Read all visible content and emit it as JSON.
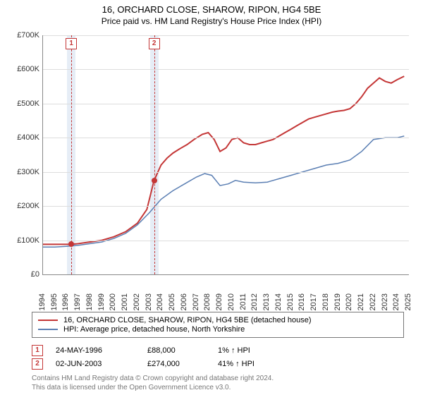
{
  "title": {
    "line1": "16, ORCHARD CLOSE, SHAROW, RIPON, HG4 5BE",
    "line2": "Price paid vs. HM Land Registry's House Price Index (HPI)"
  },
  "chart": {
    "type": "line",
    "background_color": "#ffffff",
    "grid_color": "#dddddd",
    "axis_color": "#888888",
    "x": {
      "min": 1994,
      "max": 2025,
      "tick_step": 1
    },
    "y": {
      "min": 0,
      "max": 700000,
      "tick_step": 100000,
      "prefix": "£",
      "label_fontsize": 11
    },
    "marker_band_color": "#e6edf6",
    "marker_line_color": "#c43636",
    "series": [
      {
        "name": "16, ORCHARD CLOSE, SHAROW, RIPON, HG4 5BE (detached house)",
        "color": "#c43636",
        "line_width": 2,
        "points": [
          [
            1994.0,
            88
          ],
          [
            1995.0,
            88
          ],
          [
            1996.4,
            88
          ],
          [
            1997.0,
            90
          ],
          [
            1998.0,
            95
          ],
          [
            1999.0,
            100
          ],
          [
            2000.0,
            110
          ],
          [
            2001.0,
            125
          ],
          [
            2002.0,
            150
          ],
          [
            2002.8,
            190
          ],
          [
            2003.4,
            274
          ],
          [
            2004.0,
            320
          ],
          [
            2004.5,
            340
          ],
          [
            2005.0,
            355
          ],
          [
            2005.7,
            370
          ],
          [
            2006.2,
            380
          ],
          [
            2006.8,
            395
          ],
          [
            2007.5,
            410
          ],
          [
            2008.0,
            415
          ],
          [
            2008.5,
            395
          ],
          [
            2009.0,
            360
          ],
          [
            2009.5,
            370
          ],
          [
            2010.0,
            395
          ],
          [
            2010.5,
            400
          ],
          [
            2011.0,
            385
          ],
          [
            2011.5,
            380
          ],
          [
            2012.0,
            380
          ],
          [
            2012.5,
            385
          ],
          [
            2013.0,
            390
          ],
          [
            2013.5,
            395
          ],
          [
            2014.0,
            405
          ],
          [
            2014.5,
            415
          ],
          [
            2015.0,
            425
          ],
          [
            2015.5,
            435
          ],
          [
            2016.0,
            445
          ],
          [
            2016.5,
            455
          ],
          [
            2017.0,
            460
          ],
          [
            2017.5,
            465
          ],
          [
            2018.0,
            470
          ],
          [
            2018.5,
            475
          ],
          [
            2019.0,
            478
          ],
          [
            2019.5,
            480
          ],
          [
            2020.0,
            485
          ],
          [
            2020.5,
            500
          ],
          [
            2021.0,
            520
          ],
          [
            2021.5,
            545
          ],
          [
            2022.0,
            560
          ],
          [
            2022.5,
            575
          ],
          [
            2023.0,
            565
          ],
          [
            2023.5,
            560
          ],
          [
            2024.0,
            570
          ],
          [
            2024.6,
            580
          ]
        ]
      },
      {
        "name": "HPI: Average price, detached house, North Yorkshire",
        "color": "#5b7fb3",
        "line_width": 1.5,
        "points": [
          [
            1994.0,
            80
          ],
          [
            1995.0,
            80
          ],
          [
            1996.0,
            82
          ],
          [
            1997.0,
            85
          ],
          [
            1998.0,
            90
          ],
          [
            1999.0,
            95
          ],
          [
            2000.0,
            105
          ],
          [
            2001.0,
            120
          ],
          [
            2002.0,
            145
          ],
          [
            2003.0,
            180
          ],
          [
            2004.0,
            220
          ],
          [
            2005.0,
            245
          ],
          [
            2006.0,
            265
          ],
          [
            2007.0,
            285
          ],
          [
            2007.7,
            295
          ],
          [
            2008.3,
            290
          ],
          [
            2009.0,
            260
          ],
          [
            2009.7,
            265
          ],
          [
            2010.3,
            275
          ],
          [
            2011.0,
            270
          ],
          [
            2012.0,
            268
          ],
          [
            2013.0,
            270
          ],
          [
            2014.0,
            280
          ],
          [
            2015.0,
            290
          ],
          [
            2016.0,
            300
          ],
          [
            2017.0,
            310
          ],
          [
            2018.0,
            320
          ],
          [
            2019.0,
            325
          ],
          [
            2020.0,
            335
          ],
          [
            2021.0,
            360
          ],
          [
            2022.0,
            395
          ],
          [
            2023.0,
            400
          ],
          [
            2024.0,
            400
          ],
          [
            2024.6,
            405
          ]
        ]
      }
    ],
    "sale_markers": [
      {
        "n": "1",
        "x": 1996.4,
        "y": 88
      },
      {
        "n": "2",
        "x": 2003.42,
        "y": 274
      }
    ]
  },
  "legend": {
    "items": [
      {
        "color": "#c43636",
        "label": "16, ORCHARD CLOSE, SHAROW, RIPON, HG4 5BE (detached house)"
      },
      {
        "color": "#5b7fb3",
        "label": "HPI: Average price, detached house, North Yorkshire"
      }
    ]
  },
  "sales": [
    {
      "n": "1",
      "date": "24-MAY-1996",
      "price": "£88,000",
      "pct": "1%",
      "suffix": "HPI"
    },
    {
      "n": "2",
      "date": "02-JUN-2003",
      "price": "£274,000",
      "pct": "41%",
      "suffix": "HPI"
    }
  ],
  "footer": {
    "line1": "Contains HM Land Registry data © Crown copyright and database right 2024.",
    "line2": "This data is licensed under the Open Government Licence v3.0."
  }
}
